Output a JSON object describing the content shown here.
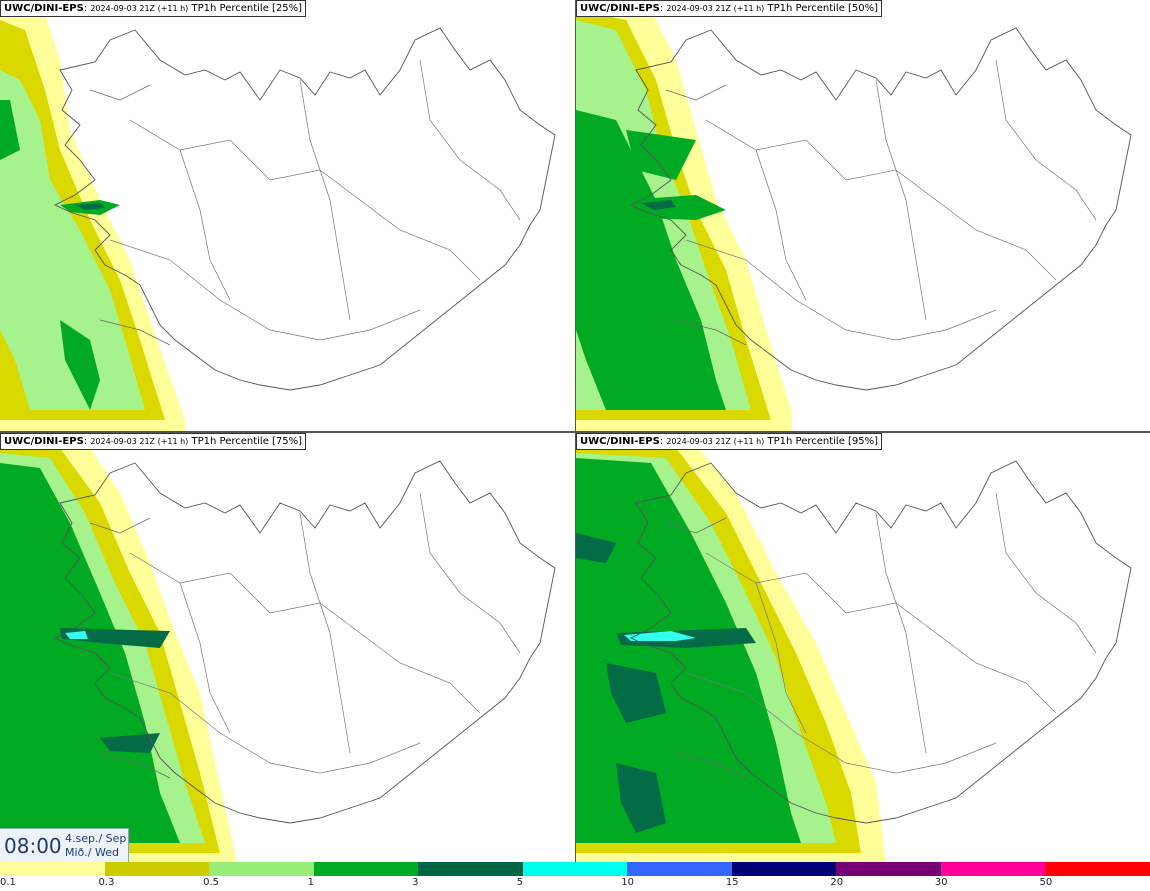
{
  "panels": [
    {
      "model": "UWC/DINI-EPS",
      "run": "2024-09-03 21Z (+11 h)",
      "field": "TP1h Percentile [25%]"
    },
    {
      "model": "UWC/DINI-EPS",
      "run": "2024-09-03 21Z (+11 h)",
      "field": "TP1h Percentile [50%]"
    },
    {
      "model": "UWC/DINI-EPS",
      "run": "2024-09-03 21Z (+11 h)",
      "field": "TP1h Percentile [75%]"
    },
    {
      "model": "UWC/DINI-EPS",
      "run": "2024-09-03 21Z (+11 h)",
      "field": "TP1h Percentile [95%]"
    }
  ],
  "valid_time": {
    "time": "08:00",
    "date": "4.sep./ Sep",
    "day": "Mið./ Wed"
  },
  "legend": {
    "labels": [
      "0.1",
      "0.3",
      "0.5",
      "1",
      "3",
      "5",
      "10",
      "15",
      "20",
      "30",
      "50"
    ],
    "colors": [
      "#ffff99",
      "#cccc00",
      "#99ee77",
      "#00aa22",
      "#006644",
      "#00ffee",
      "#3366ff",
      "#000077",
      "#770077",
      "#ff0099",
      "#ff0000"
    ]
  },
  "colors": {
    "c01": "#ffff99",
    "c03": "#d9d900",
    "c05": "#a6f28c",
    "c1": "#00aa22",
    "c3": "#036b46",
    "c5": "#33ffee"
  }
}
